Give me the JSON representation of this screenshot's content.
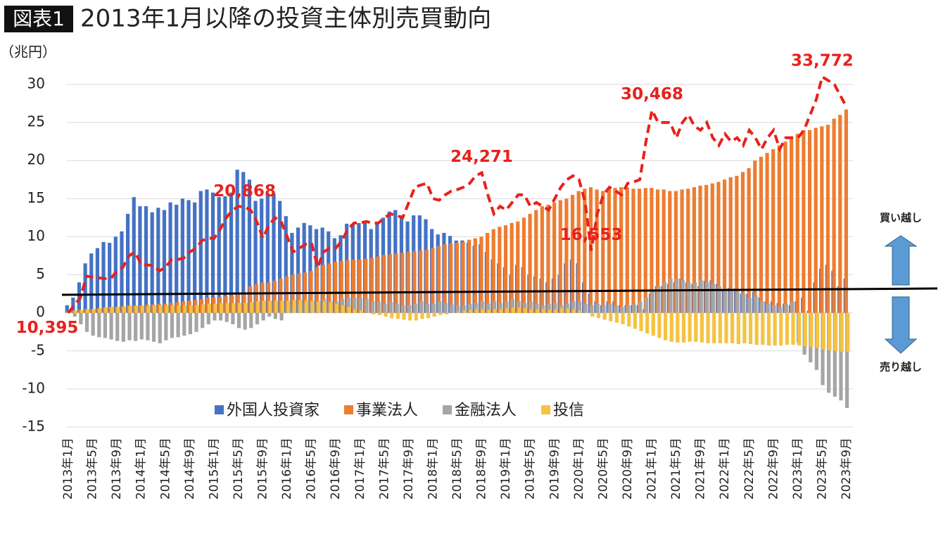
{
  "chart_data": {
    "type": "bar",
    "badge": "図表1",
    "title": "2013年1月以降の投資主体別売買動向",
    "y_label": "（兆円）",
    "buy_label": "買い越し",
    "sell_label": "売り越し",
    "ylim": [
      -15,
      33
    ],
    "yticks": [
      -15,
      -10,
      -5,
      0,
      5,
      10,
      15,
      20,
      25,
      30
    ],
    "y2lim": [
      -917,
      35282
    ],
    "grid": true,
    "legend": "bottom",
    "categories": [
      "2013年1月",
      null,
      null,
      null,
      "2013年5月",
      null,
      null,
      null,
      "2013年9月",
      null,
      null,
      null,
      "2014年1月",
      null,
      null,
      null,
      "2014年5月",
      null,
      null,
      null,
      "2014年9月",
      null,
      null,
      null,
      "2015年1月",
      null,
      null,
      null,
      "2015年5月",
      null,
      null,
      null,
      "2015年9月",
      null,
      null,
      null,
      "2016年1月",
      null,
      null,
      null,
      "2016年5月",
      null,
      null,
      null,
      "2016年9月",
      null,
      null,
      null,
      "2017年1月",
      null,
      null,
      null,
      "2017年5月",
      null,
      null,
      null,
      "2017年9月",
      null,
      null,
      null,
      "2018年1月",
      null,
      null,
      null,
      "2018年5月",
      null,
      null,
      null,
      "2018年9月",
      null,
      null,
      null,
      "2019年1月",
      null,
      null,
      null,
      "2019年5月",
      null,
      null,
      null,
      "2019年9月",
      null,
      null,
      null,
      "2020年1月",
      null,
      null,
      null,
      "2020年5月",
      null,
      null,
      null,
      "2020年9月",
      null,
      null,
      null,
      "2021年1月",
      null,
      null,
      null,
      "2021年5月",
      null,
      null,
      null,
      "2021年9月",
      null,
      null,
      null,
      "2022年1月",
      null,
      null,
      null,
      "2022年5月",
      null,
      null,
      null,
      "2022年9月",
      null,
      null,
      null,
      "2023年1月",
      null,
      null,
      null,
      "2023年5月",
      null,
      null,
      null,
      "2023年9月"
    ],
    "series": [
      {
        "name": "外国人投資家",
        "color": "#4472c4",
        "values": [
          1,
          2,
          4,
          6.5,
          7.8,
          8.5,
          9.3,
          9.2,
          10,
          10.7,
          13,
          15.2,
          14,
          14,
          13.2,
          13.8,
          13.5,
          14.5,
          14.2,
          15,
          14.8,
          14.5,
          16,
          16.2,
          15.8,
          15.2,
          15.3,
          15.8,
          18.8,
          18.5,
          17.5,
          14.7,
          15,
          15.7,
          15.7,
          14.7,
          12.7,
          10.5,
          11.2,
          11.8,
          11.5,
          11,
          11.2,
          10.7,
          9.8,
          10.2,
          11.7,
          11.7,
          11.8,
          12,
          11,
          11.8,
          12.5,
          13.3,
          13.5,
          12.8,
          12,
          12.8,
          12.8,
          12.3,
          11,
          10.3,
          10.5,
          10.1,
          9.5,
          9.5,
          9.2,
          8.8,
          9,
          8,
          7,
          6.5,
          6,
          5,
          6.3,
          6,
          5,
          4.8,
          4.5,
          4,
          4.5,
          5,
          6.5,
          7,
          6.5,
          4,
          2.5,
          1.5,
          1,
          1.5,
          1.5,
          1,
          1,
          1,
          1,
          0.5,
          2.5,
          3.5,
          3.5,
          3.8,
          4,
          4.5,
          4,
          3.8,
          3.5,
          4.2,
          4.3,
          3.8,
          3,
          3.3,
          3.2,
          2.5,
          2.5,
          2.8,
          2,
          1.5,
          1.5,
          1.3,
          1.2,
          1,
          1.5,
          2,
          0.3,
          4,
          5.8,
          6.3,
          5.5,
          3.5,
          4.5
        ]
      },
      {
        "name": "事業法人",
        "color": "#ed7d31",
        "values": [
          0.2,
          0.3,
          0.4,
          0.5,
          0.5,
          0.6,
          0.7,
          0.8,
          0.8,
          0.9,
          1,
          1,
          1,
          1.1,
          1.1,
          1.2,
          1.2,
          1.3,
          1.4,
          1.5,
          1.6,
          1.7,
          1.8,
          2,
          2,
          2.1,
          2.2,
          2.3,
          2.5,
          2.7,
          3.5,
          3.8,
          4,
          4,
          4.2,
          4.5,
          4.8,
          5,
          5.2,
          5.3,
          5.5,
          6,
          6.3,
          6.5,
          6.7,
          6.8,
          6.9,
          7,
          7,
          7.1,
          7.2,
          7.4,
          7.6,
          7.7,
          7.8,
          7.9,
          8,
          8.1,
          8.2,
          8.3,
          8.5,
          8.8,
          9,
          9.1,
          9.2,
          9.3,
          9.6,
          9.8,
          10,
          10.5,
          11,
          11.3,
          11.5,
          11.8,
          12,
          12.5,
          13,
          13.5,
          14,
          14.2,
          14.5,
          14.8,
          15,
          15.5,
          16,
          16.3,
          16.5,
          16.2,
          16,
          16.2,
          16.4,
          16.5,
          16.5,
          16.3,
          16.3,
          16.4,
          16.4,
          16.2,
          16.2,
          16,
          16,
          16.2,
          16.3,
          16.5,
          16.7,
          16.8,
          17,
          17.2,
          17.5,
          17.8,
          18,
          18.5,
          19,
          20,
          20.5,
          21,
          21.5,
          22,
          22.5,
          23,
          23.5,
          24,
          24,
          24.3,
          24.5,
          24.7,
          25.5,
          26,
          26.7
        ]
      },
      {
        "name": "金融法人",
        "color": "#a5a5a5",
        "values": [
          0,
          -0.5,
          -1.5,
          -2.5,
          -3,
          -3.2,
          -3.3,
          -3.5,
          -3.7,
          -3.8,
          -3.6,
          -3.7,
          -3.5,
          -3.6,
          -3.8,
          -4,
          -3.6,
          -3.3,
          -3.2,
          -3,
          -2.8,
          -2.5,
          -2,
          -1.5,
          -1,
          -1,
          -1.2,
          -1.5,
          -2,
          -2.2,
          -2,
          -1.5,
          -1,
          -0.5,
          -0.8,
          -1,
          0.5,
          0.8,
          1,
          1.2,
          1.5,
          1.5,
          1.8,
          1.5,
          1.5,
          1.8,
          2,
          2,
          2,
          1.8,
          1.5,
          1.5,
          1.2,
          1.4,
          1.2,
          1,
          1,
          1.2,
          1.5,
          1.2,
          1.2,
          1.5,
          1.3,
          1.1,
          1,
          1,
          1.2,
          1.3,
          1.5,
          1.2,
          1.5,
          1.3,
          1.5,
          1.8,
          1.5,
          1.3,
          1.5,
          1.2,
          1,
          1.2,
          1.3,
          1,
          1.2,
          1.5,
          1.5,
          1.2,
          1,
          1.2,
          1,
          1.2,
          1,
          0.8,
          1,
          1.2,
          1.5,
          2,
          3,
          3.5,
          4,
          4.5,
          4.5,
          4.3,
          4,
          4,
          4.3,
          4,
          3.8,
          3.5,
          3.2,
          3,
          2.8,
          2.5,
          2,
          2.3,
          1.5,
          1.2,
          1,
          0.8,
          1.2,
          1.5,
          -4,
          -5.5,
          -6.5,
          -7.5,
          -9.5,
          -10.5,
          -11,
          -11.5,
          -12.5
        ]
      },
      {
        "name": "投信",
        "color": "#f5c342",
        "values": [
          0.2,
          0.3,
          0.4,
          0.5,
          0.5,
          0.6,
          0.7,
          0.8,
          0.8,
          0.8,
          0.9,
          0.9,
          0.9,
          0.9,
          1,
          1,
          1,
          1,
          1,
          1,
          1,
          1,
          1.1,
          1.2,
          1.2,
          1.3,
          1.3,
          1.3,
          1.3,
          1.3,
          1.4,
          1.5,
          1.6,
          1.6,
          1.6,
          1.6,
          1.6,
          1.7,
          1.7,
          1.7,
          1.6,
          1.5,
          1.5,
          1.4,
          1.2,
          1,
          0.8,
          0.5,
          0.3,
          0,
          -0.2,
          -0.3,
          -0.5,
          -0.7,
          -0.8,
          -0.9,
          -1,
          -1,
          -0.8,
          -0.7,
          -0.5,
          -0.3,
          -0.2,
          0,
          0.2,
          0.3,
          0.4,
          0.5,
          0.5,
          0.4,
          0.5,
          0.5,
          0.6,
          0.7,
          0.7,
          0.6,
          0.5,
          0.5,
          0.5,
          0.4,
          0.5,
          0.6,
          0.6,
          0.5,
          0.3,
          0,
          -0.5,
          -0.7,
          -0.9,
          -1.1,
          -1.3,
          -1.5,
          -1.8,
          -2.1,
          -2.4,
          -2.7,
          -3,
          -3.3,
          -3.6,
          -3.8,
          -3.9,
          -3.9,
          -3.8,
          -3.8,
          -3.9,
          -4,
          -4,
          -4,
          -4,
          -4,
          -4.1,
          -4,
          -4.1,
          -4.2,
          -4.2,
          -4.3,
          -4.3,
          -4.3,
          -4.2,
          -4.2,
          -4.3,
          -4.4,
          -4.5,
          -4.6,
          -4.8,
          -4.9,
          -5,
          -5.1,
          -5.1
        ]
      }
    ],
    "line": {
      "axis": "y2",
      "color": "#e8211c",
      "label_color": "#e8211c",
      "values": [
        10395,
        11149,
        11903,
        14014,
        13939,
        13863,
        13788,
        13788,
        14542,
        14919,
        16050,
        16427,
        15145,
        15145,
        15070,
        14542,
        14919,
        15673,
        15673,
        15824,
        16427,
        16804,
        17558,
        17784,
        17784,
        18689,
        19820,
        20574,
        20951,
        20868,
        20574,
        19443,
        17784,
        19066,
        19820,
        19443,
        17935,
        16427,
        16804,
        17181,
        17332,
        14919,
        16427,
        16804,
        16804,
        17558,
        18689,
        19292,
        19292,
        19443,
        19292,
        19292,
        19820,
        20197,
        20046,
        19820,
        21328,
        22836,
        23062,
        23213,
        21705,
        21554,
        22082,
        22459,
        22610,
        22836,
        23213,
        23967,
        24271,
        22082,
        20197,
        20951,
        20574,
        21328,
        22082,
        22082,
        20951,
        21328,
        20951,
        20574,
        21705,
        22836,
        23590,
        23967,
        23590,
        21328,
        16553,
        20197,
        22082,
        22836,
        22459,
        22082,
        23213,
        23364,
        23590,
        27360,
        30468,
        29245,
        29245,
        29245,
        27737,
        29245,
        29999,
        28868,
        28491,
        29245,
        27737,
        26983,
        28114,
        27360,
        27737,
        26983,
        28491,
        27737,
        26606,
        27737,
        28491,
        26606,
        27737,
        27737,
        27737,
        28491,
        29999,
        31507,
        33772,
        33392,
        33015,
        31884,
        30753
      ],
      "value_labels": [
        "10,395",
        null,
        null,
        null,
        null,
        null,
        null,
        null,
        null,
        null,
        null,
        null,
        null,
        null,
        null,
        null,
        null,
        null,
        null,
        null,
        null,
        null,
        null,
        null,
        null,
        null,
        null,
        null,
        null,
        "20,868",
        null,
        null,
        null,
        null,
        null,
        null,
        null,
        null,
        null,
        null,
        null,
        null,
        null,
        null,
        null,
        null,
        null,
        null,
        null,
        null,
        null,
        null,
        null,
        null,
        null,
        null,
        null,
        null,
        null,
        null,
        null,
        null,
        null,
        null,
        null,
        null,
        null,
        null,
        "24,271",
        null,
        null,
        null,
        null,
        null,
        null,
        null,
        null,
        null,
        null,
        null,
        null,
        null,
        null,
        null,
        null,
        null,
        "16,553",
        null,
        null,
        null,
        null,
        null,
        null,
        null,
        null,
        null,
        "30,468",
        null,
        null,
        null,
        null,
        null,
        null,
        null,
        null,
        null,
        null,
        null,
        null,
        null,
        null,
        null,
        null,
        null,
        null,
        null,
        null,
        null,
        null,
        null,
        null,
        null,
        null,
        null,
        "33,772",
        null,
        null,
        null,
        null
      ]
    }
  }
}
